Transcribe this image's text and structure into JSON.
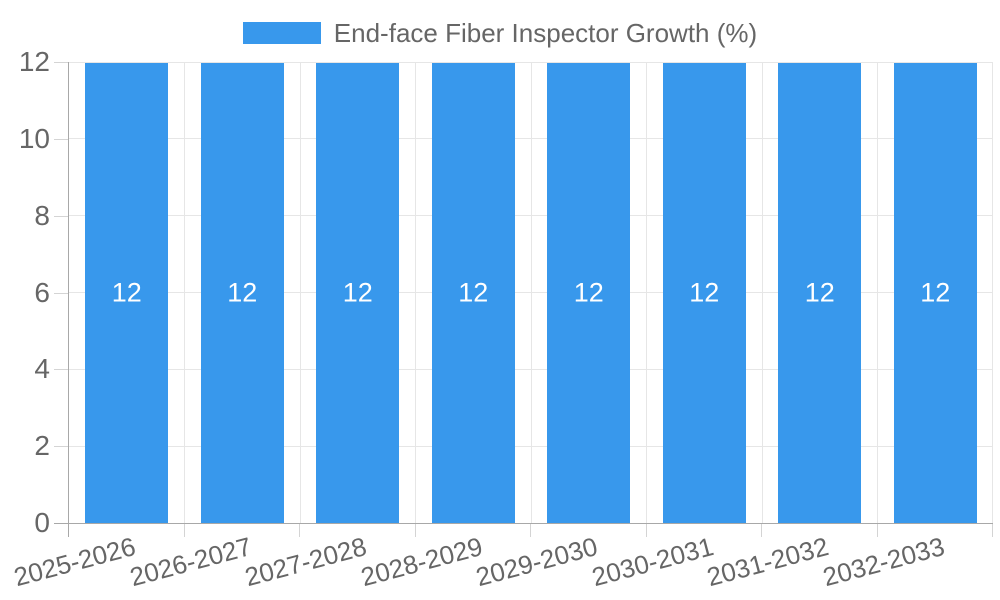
{
  "chart_data": {
    "type": "bar",
    "title": "",
    "legend_label": "End-face Fiber Inspector Growth (%)",
    "legend_position": "top",
    "categories": [
      "2025-2026",
      "2026-2027",
      "2027-2028",
      "2028-2029",
      "2029-2030",
      "2030-2031",
      "2031-2032",
      "2032-2033"
    ],
    "values": [
      12,
      12,
      12,
      12,
      12,
      12,
      12,
      12
    ],
    "data_labels": [
      "12",
      "12",
      "12",
      "12",
      "12",
      "12",
      "12",
      "12"
    ],
    "xlabel": "",
    "ylabel": "",
    "ylim": [
      0,
      12
    ],
    "y_ticks": [
      0,
      2,
      4,
      6,
      8,
      10,
      12
    ],
    "grid": true
  },
  "colors": {
    "bar": "#3898ec",
    "tick_text": "#666666",
    "data_label_text": "#ffffff",
    "gridline": "#e6e6e6",
    "tick_mark": "#d4d4d4",
    "axis_line": "#a8a8a8",
    "background": "#ffffff"
  }
}
